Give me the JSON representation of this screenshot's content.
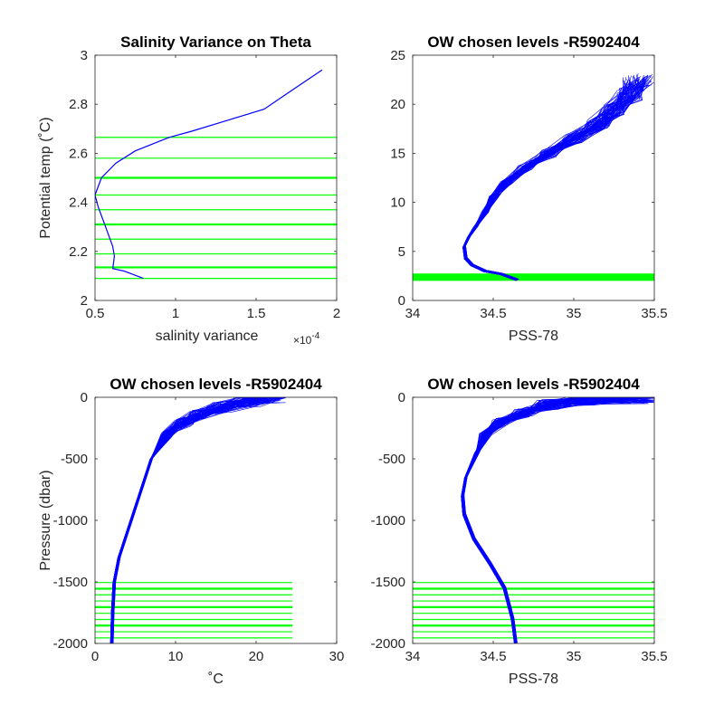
{
  "figure": {
    "background": "#ffffff"
  },
  "colors": {
    "profile": "#0000ff",
    "levels": "#00ff00",
    "axis": "#262626"
  },
  "chart_data": [
    {
      "id": "p1",
      "type": "line",
      "title": "Salinity Variance on Theta",
      "xlabel": "salinity variance",
      "ylabel": "Potential temp (˚C)",
      "x_exponent_label": "×10",
      "x_exponent_power": "-4",
      "xlim": [
        0.5,
        2.0
      ],
      "ylim": [
        2.0,
        3.0
      ],
      "xticks": [
        0.5,
        1.0,
        1.5,
        2.0
      ],
      "xtick_labels": [
        "0.5",
        "1",
        "1.5",
        "2"
      ],
      "yticks": [
        2.0,
        2.2,
        2.4,
        2.6,
        2.8,
        3.0
      ],
      "ytick_labels": [
        "2",
        "2.2",
        "2.4",
        "2.6",
        "2.8",
        "3"
      ],
      "series": [
        {
          "values": [
            [
              0.8,
              2.09
            ],
            [
              0.68,
              2.12
            ],
            [
              0.61,
              2.13
            ],
            [
              0.62,
              2.18
            ],
            [
              0.61,
              2.22
            ],
            [
              0.56,
              2.31
            ],
            [
              0.52,
              2.38
            ],
            [
              0.5,
              2.43
            ],
            [
              0.54,
              2.5
            ],
            [
              0.63,
              2.56
            ],
            [
              0.75,
              2.61
            ],
            [
              0.96,
              2.665
            ],
            [
              1.1,
              2.69
            ],
            [
              1.3,
              2.73
            ],
            [
              1.55,
              2.78
            ],
            [
              1.73,
              2.86
            ],
            [
              1.91,
              2.94
            ]
          ]
        }
      ],
      "hlines": [
        2.09,
        2.135,
        2.19,
        2.25,
        2.31,
        2.37,
        2.43,
        2.5,
        2.58,
        2.665
      ]
    },
    {
      "id": "p2",
      "type": "line",
      "title": "OW chosen levels -R5902404",
      "xlabel": "PSS-78",
      "ylabel": "",
      "xlim": [
        34.0,
        35.5
      ],
      "ylim": [
        0,
        25
      ],
      "xticks": [
        34.0,
        34.5,
        35.0,
        35.5
      ],
      "xtick_labels": [
        "34",
        "34.5",
        "35",
        "35.5"
      ],
      "yticks": [
        0,
        5,
        10,
        15,
        20,
        25
      ],
      "ytick_labels": [
        "0",
        "5",
        "10",
        "15",
        "20",
        "25"
      ],
      "series": [
        {
          "values": [
            [
              34.65,
              2.1
            ],
            [
              34.55,
              2.7
            ],
            [
              34.45,
              3.0
            ],
            [
              34.37,
              3.6
            ],
            [
              34.33,
              4.3
            ],
            [
              34.32,
              5.5
            ],
            [
              34.35,
              6.5
            ],
            [
              34.39,
              7.5
            ],
            [
              34.45,
              9.0
            ],
            [
              34.5,
              10.5
            ],
            [
              34.58,
              12.0
            ],
            [
              34.7,
              13.5
            ],
            [
              34.85,
              15.0
            ],
            [
              35.0,
              16.5
            ],
            [
              35.15,
              18.0
            ],
            [
              35.25,
              19.5
            ],
            [
              35.35,
              21.0
            ],
            [
              35.4,
              22.5
            ]
          ]
        }
      ],
      "band": [
        2.0,
        2.75
      ]
    },
    {
      "id": "p3",
      "type": "line",
      "title": "OW chosen levels -R5902404",
      "xlabel": "˚C",
      "ylabel": "Pressure (dbar)",
      "xlim": [
        0,
        30
      ],
      "ylim": [
        -2000,
        0
      ],
      "xticks": [
        0,
        10,
        20,
        30
      ],
      "xtick_labels": [
        "0",
        "10",
        "20",
        "30"
      ],
      "yticks": [
        -2000,
        -1500,
        -1000,
        -500,
        0
      ],
      "ytick_labels": [
        "-2000",
        "-1500",
        "-1000",
        "-500",
        "0"
      ],
      "series": [
        {
          "values": [
            [
              2.1,
              -2000
            ],
            [
              2.2,
              -1750
            ],
            [
              2.4,
              -1500
            ],
            [
              3.0,
              -1300
            ],
            [
              4.0,
              -1100
            ],
            [
              5.5,
              -800
            ],
            [
              7.0,
              -500
            ],
            [
              9.0,
              -300
            ],
            [
              11.0,
              -200
            ],
            [
              13.0,
              -140
            ],
            [
              16.0,
              -80
            ],
            [
              19.0,
              -30
            ],
            [
              22.0,
              0
            ]
          ]
        }
      ],
      "hlines": [
        -1505,
        -1555,
        -1605,
        -1655,
        -1705,
        -1755,
        -1805,
        -1855,
        -1905,
        -1955
      ]
    },
    {
      "id": "p4",
      "type": "line",
      "title": "OW chosen levels -R5902404",
      "xlabel": "PSS-78",
      "ylabel": "",
      "xlim": [
        34.0,
        35.5
      ],
      "ylim": [
        -2000,
        0
      ],
      "xticks": [
        34.0,
        34.5,
        35.0,
        35.5
      ],
      "xtick_labels": [
        "34",
        "34.5",
        "35",
        "35.5"
      ],
      "yticks": [
        -2000,
        -1500,
        -1000,
        -500,
        0
      ],
      "ytick_labels": [
        "-2000",
        "-1500",
        "-1000",
        "-500",
        "0"
      ],
      "series": [
        {
          "values": [
            [
              34.64,
              -2000
            ],
            [
              34.62,
              -1800
            ],
            [
              34.57,
              -1550
            ],
            [
              34.48,
              -1350
            ],
            [
              34.38,
              -1150
            ],
            [
              34.32,
              -950
            ],
            [
              34.31,
              -800
            ],
            [
              34.33,
              -650
            ],
            [
              34.4,
              -450
            ],
            [
              34.45,
              -300
            ],
            [
              34.55,
              -200
            ],
            [
              34.7,
              -120
            ],
            [
              34.85,
              -60
            ],
            [
              35.05,
              -20
            ],
            [
              35.45,
              0
            ]
          ]
        }
      ],
      "hlines": [
        -1505,
        -1555,
        -1605,
        -1655,
        -1705,
        -1755,
        -1805,
        -1855,
        -1905,
        -1955
      ]
    }
  ]
}
